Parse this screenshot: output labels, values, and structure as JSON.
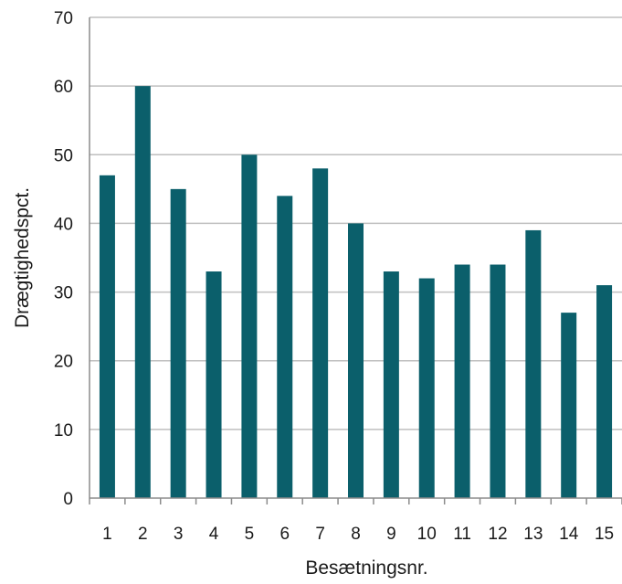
{
  "chart_data": {
    "type": "bar",
    "title": "",
    "xlabel": "Besætningsnr.",
    "ylabel": "Drægtighedspct.",
    "categories": [
      "1",
      "2",
      "3",
      "4",
      "5",
      "6",
      "7",
      "8",
      "9",
      "10",
      "11",
      "12",
      "13",
      "14",
      "15"
    ],
    "values": [
      47,
      60,
      45,
      33,
      50,
      44,
      48,
      40,
      33,
      32,
      34,
      34,
      39,
      27,
      31
    ],
    "ylim": [
      0,
      70
    ],
    "yticks": [
      "0",
      "10",
      "20",
      "30",
      "40",
      "50",
      "60",
      "70"
    ],
    "grid": true,
    "legend": "none",
    "colors": {
      "bar": "#0b5f6b",
      "grid": "#bfbfbf",
      "axis": "#8c8c8c"
    }
  }
}
